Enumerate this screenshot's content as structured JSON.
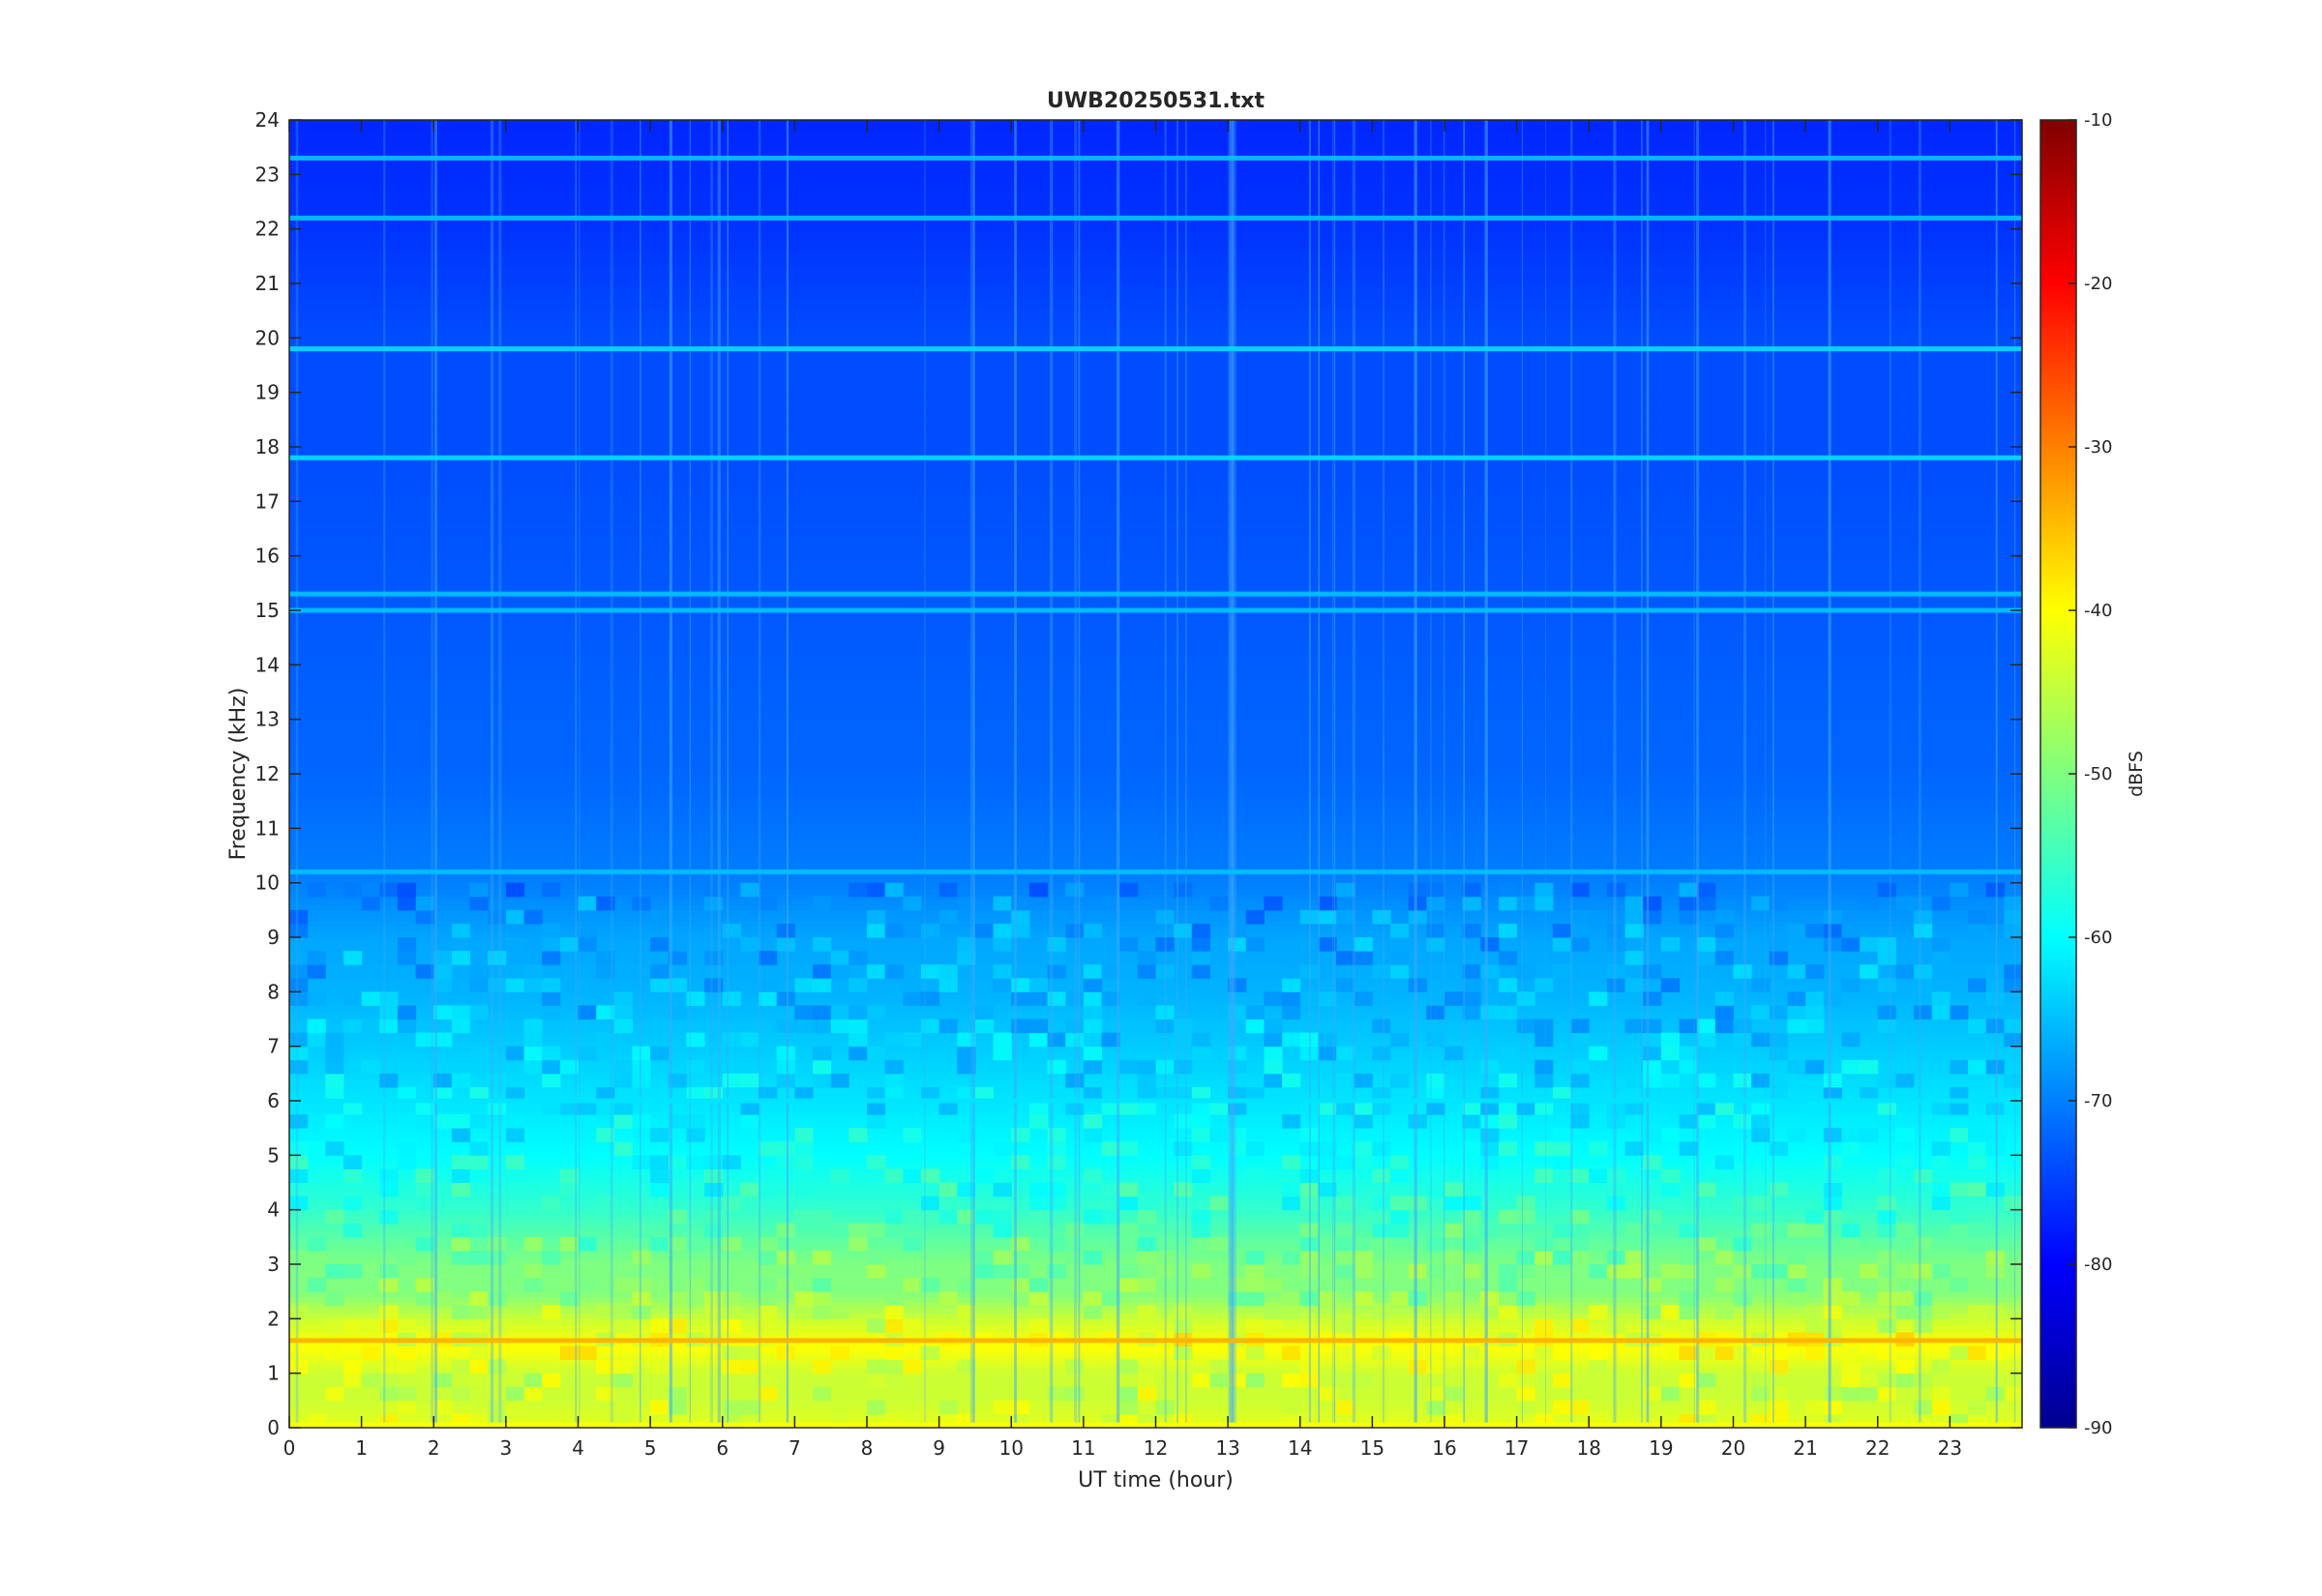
{
  "chart_data": {
    "type": "heatmap",
    "title": "UWB20250531.txt",
    "xlabel": "UT time (hour)",
    "ylabel": "Frequency (kHz)",
    "colorbar_label": "dBFS",
    "xlim": [
      0,
      24
    ],
    "ylim": [
      0,
      24
    ],
    "clim": [
      -90,
      -10
    ],
    "colormap": "jet",
    "x_ticks": [
      0,
      1,
      2,
      3,
      4,
      5,
      6,
      7,
      8,
      9,
      10,
      11,
      12,
      13,
      14,
      15,
      16,
      17,
      18,
      19,
      20,
      21,
      22,
      23
    ],
    "y_ticks": [
      0,
      1,
      2,
      3,
      4,
      5,
      6,
      7,
      8,
      9,
      10,
      11,
      12,
      13,
      14,
      15,
      16,
      17,
      18,
      19,
      20,
      21,
      22,
      23,
      24
    ],
    "colorbar_ticks": [
      -90,
      -80,
      -70,
      -60,
      -50,
      -40,
      -30,
      -20,
      -10
    ],
    "profile": {
      "frequency_khz": [
        0,
        0.5,
        1,
        1.5,
        2,
        2.5,
        3,
        4,
        5,
        6,
        7,
        8,
        9,
        10,
        12,
        15,
        18,
        20,
        22,
        24
      ],
      "typical_level_dbfs": [
        -42,
        -44,
        -44,
        -40,
        -44,
        -50,
        -50,
        -56,
        -60,
        -62,
        -64,
        -66,
        -67,
        -70,
        -72,
        -73,
        -74,
        -74,
        -76,
        -77
      ]
    },
    "narrowband_lines": [
      {
        "frequency_khz": 19.8,
        "level_dbfs": -63
      },
      {
        "frequency_khz": 17.8,
        "level_dbfs": -63
      },
      {
        "frequency_khz": 15.3,
        "level_dbfs": -65
      },
      {
        "frequency_khz": 15.0,
        "level_dbfs": -65
      },
      {
        "frequency_khz": 10.2,
        "level_dbfs": -65
      },
      {
        "frequency_khz": 6.0,
        "level_dbfs": -62
      },
      {
        "frequency_khz": 23.3,
        "level_dbfs": -65
      },
      {
        "frequency_khz": 22.2,
        "level_dbfs": -65
      },
      {
        "frequency_khz": 1.6,
        "level_dbfs": -34
      },
      {
        "frequency_khz": 0.05,
        "level_dbfs": -40
      }
    ]
  }
}
